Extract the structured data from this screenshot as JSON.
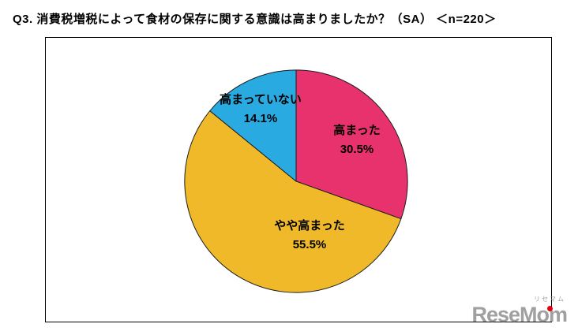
{
  "title": "Q3. 消費税増税によって食材の保存に関する意識は高まりましたか？（SA） ＜n=220＞",
  "chart_data": {
    "type": "pie",
    "title": "消費税増税によって食材の保存に関する意識は高まりましたか",
    "sample_size": 220,
    "start_angle_deg": 0,
    "direction": "clockwise",
    "stroke_color": "#1a1a1a",
    "slices": [
      {
        "label": "高まった",
        "value": 30.5,
        "pct_label": "30.5%",
        "color": "#e8326e"
      },
      {
        "label": "やや高まった",
        "value": 55.5,
        "pct_label": "55.5%",
        "color": "#efb929"
      },
      {
        "label": "高まっていない",
        "value": 14.1,
        "pct_label": "14.1%",
        "color": "#29abe2"
      }
    ]
  },
  "logo": {
    "brand": "ReseMom",
    "kana": "リセマム",
    "text_color": "#9fa0a0",
    "dot_color": "#e60012"
  }
}
